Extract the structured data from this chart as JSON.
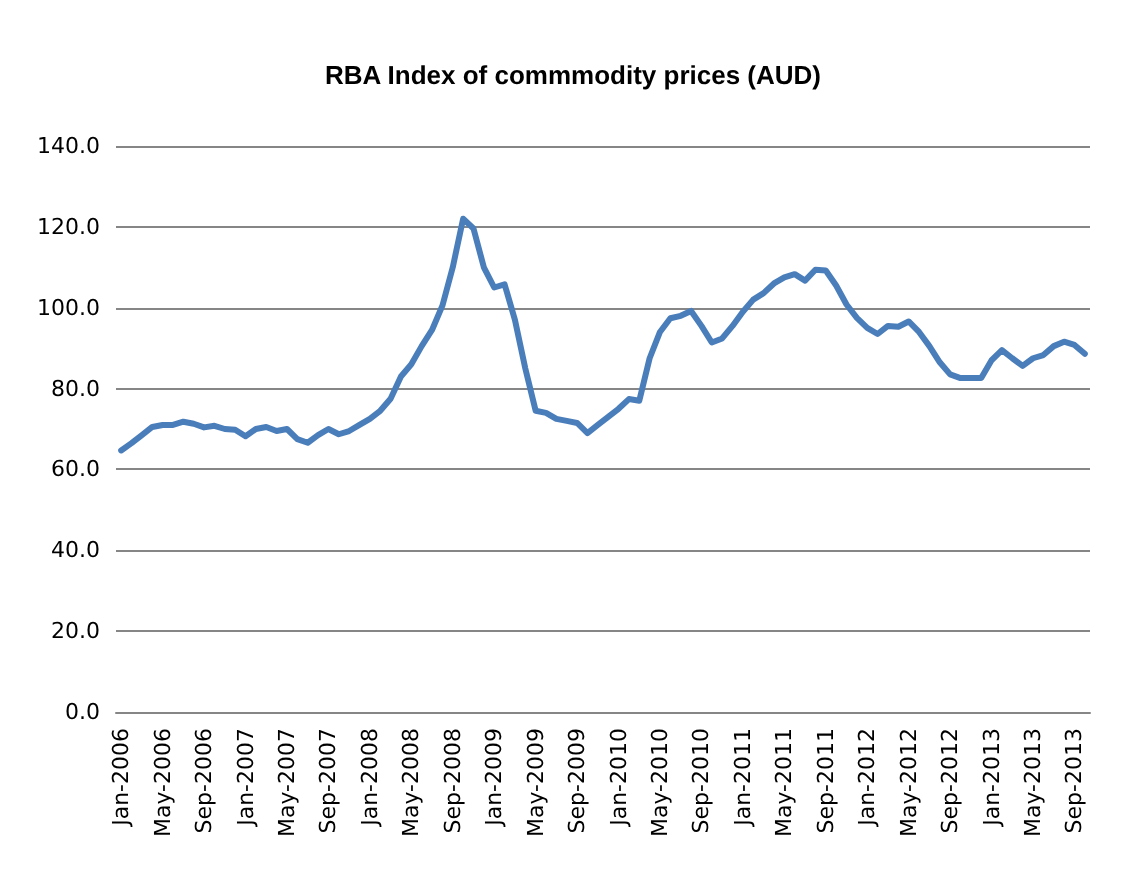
{
  "chart_data": {
    "type": "line",
    "title": "RBA Index of commmodity prices (AUD)",
    "categories": [
      "Jan-2006",
      null,
      null,
      null,
      "May-2006",
      null,
      null,
      null,
      "Sep-2006",
      null,
      null,
      null,
      "Jan-2007",
      null,
      null,
      null,
      "May-2007",
      null,
      null,
      null,
      "Sep-2007",
      null,
      null,
      null,
      "Jan-2008",
      null,
      null,
      null,
      "May-2008",
      null,
      null,
      null,
      "Sep-2008",
      null,
      null,
      null,
      "Jan-2009",
      null,
      null,
      null,
      "May-2009",
      null,
      null,
      null,
      "Sep-2009",
      null,
      null,
      null,
      "Jan-2010",
      null,
      null,
      null,
      "May-2010",
      null,
      null,
      null,
      "Sep-2010",
      null,
      null,
      null,
      "Jan-2011",
      null,
      null,
      null,
      "May-2011",
      null,
      null,
      null,
      "Sep-2011",
      null,
      null,
      null,
      "Jan-2012",
      null,
      null,
      null,
      "May-2012",
      null,
      null,
      null,
      "Sep-2012",
      null,
      null,
      null,
      "Jan-2013",
      null,
      null,
      null,
      "May-2013",
      null,
      null,
      null,
      "Sep-2013",
      null
    ],
    "series": [
      {
        "color": "#4a7ebb",
        "values": [
          64.7,
          66.5,
          68.5,
          70.5,
          71,
          71,
          71.8,
          71.3,
          70.4,
          70.8,
          70,
          69.8,
          68.2,
          70,
          70.5,
          69.5,
          70,
          67.5,
          66.6,
          68.5,
          70,
          68.7,
          69.5,
          71,
          72.5,
          74.5,
          77.5,
          83,
          86,
          90.5,
          94.5,
          100.5,
          110,
          122,
          119.6,
          110,
          105,
          105.8,
          97,
          85,
          74.5,
          74,
          72.5,
          72,
          71.5,
          69,
          71,
          73,
          75,
          77.4,
          77,
          87.5,
          94,
          97.4,
          98,
          99.2,
          95.5,
          91.4,
          92.4,
          95.5,
          99,
          102,
          103.6,
          106,
          107.5,
          108.3,
          106.7,
          109.4,
          109.2,
          105.5,
          100.8,
          97.5,
          95,
          93.5,
          95.5,
          95.3,
          96.6,
          94,
          90.5,
          86.5,
          83.5,
          82.6,
          82.6,
          82.6,
          87,
          89.5,
          87.5,
          85.6,
          87.5,
          88.3,
          90.5,
          91.6,
          90.8,
          88.6
        ]
      }
    ],
    "ylim": [
      0,
      140
    ],
    "yticks": [
      {
        "value": 0,
        "label": "0.0"
      },
      {
        "value": 20,
        "label": "20.0"
      },
      {
        "value": 40,
        "label": "40.0"
      },
      {
        "value": 60,
        "label": "60.0"
      },
      {
        "value": 80,
        "label": "80.0"
      },
      {
        "value": 100,
        "label": "100.0"
      },
      {
        "value": 120,
        "label": "120.0"
      },
      {
        "value": 140,
        "label": "140.0"
      }
    ],
    "grid": "y",
    "marker": "none",
    "line_style": "solid"
  }
}
